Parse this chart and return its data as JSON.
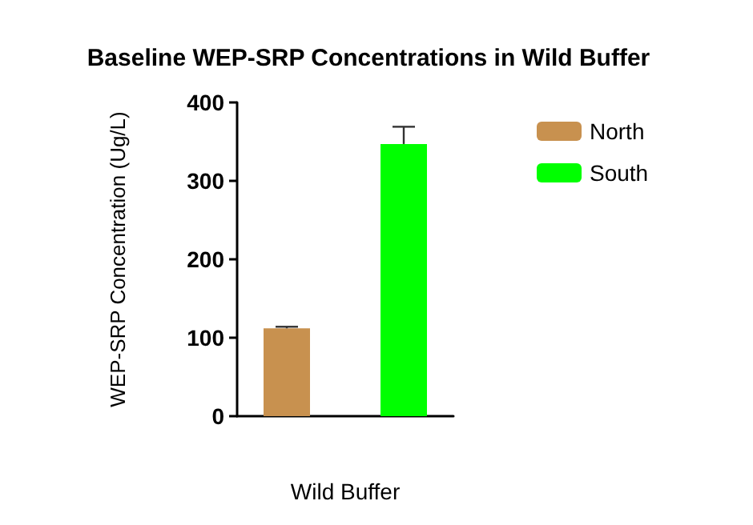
{
  "chart_data": {
    "type": "bar",
    "title": "Baseline WEP-SRP Concentrations in Wild Buffer",
    "xlabel": "Wild Buffer",
    "ylabel": "WEP-SRP Concentration (Ug/L)",
    "categories": [
      null
    ],
    "series": [
      {
        "name": "North",
        "color": "#c8914f",
        "values": [
          112
        ],
        "errors": [
          [
            112,
            114
          ]
        ]
      },
      {
        "name": "South",
        "color": "#00ff00",
        "values": [
          347
        ],
        "errors": [
          [
            347,
            369
          ]
        ]
      }
    ],
    "ylim": [
      0,
      400
    ],
    "yticks": [
      0,
      100,
      200,
      300,
      400
    ],
    "grid": false,
    "legend": "top right"
  }
}
